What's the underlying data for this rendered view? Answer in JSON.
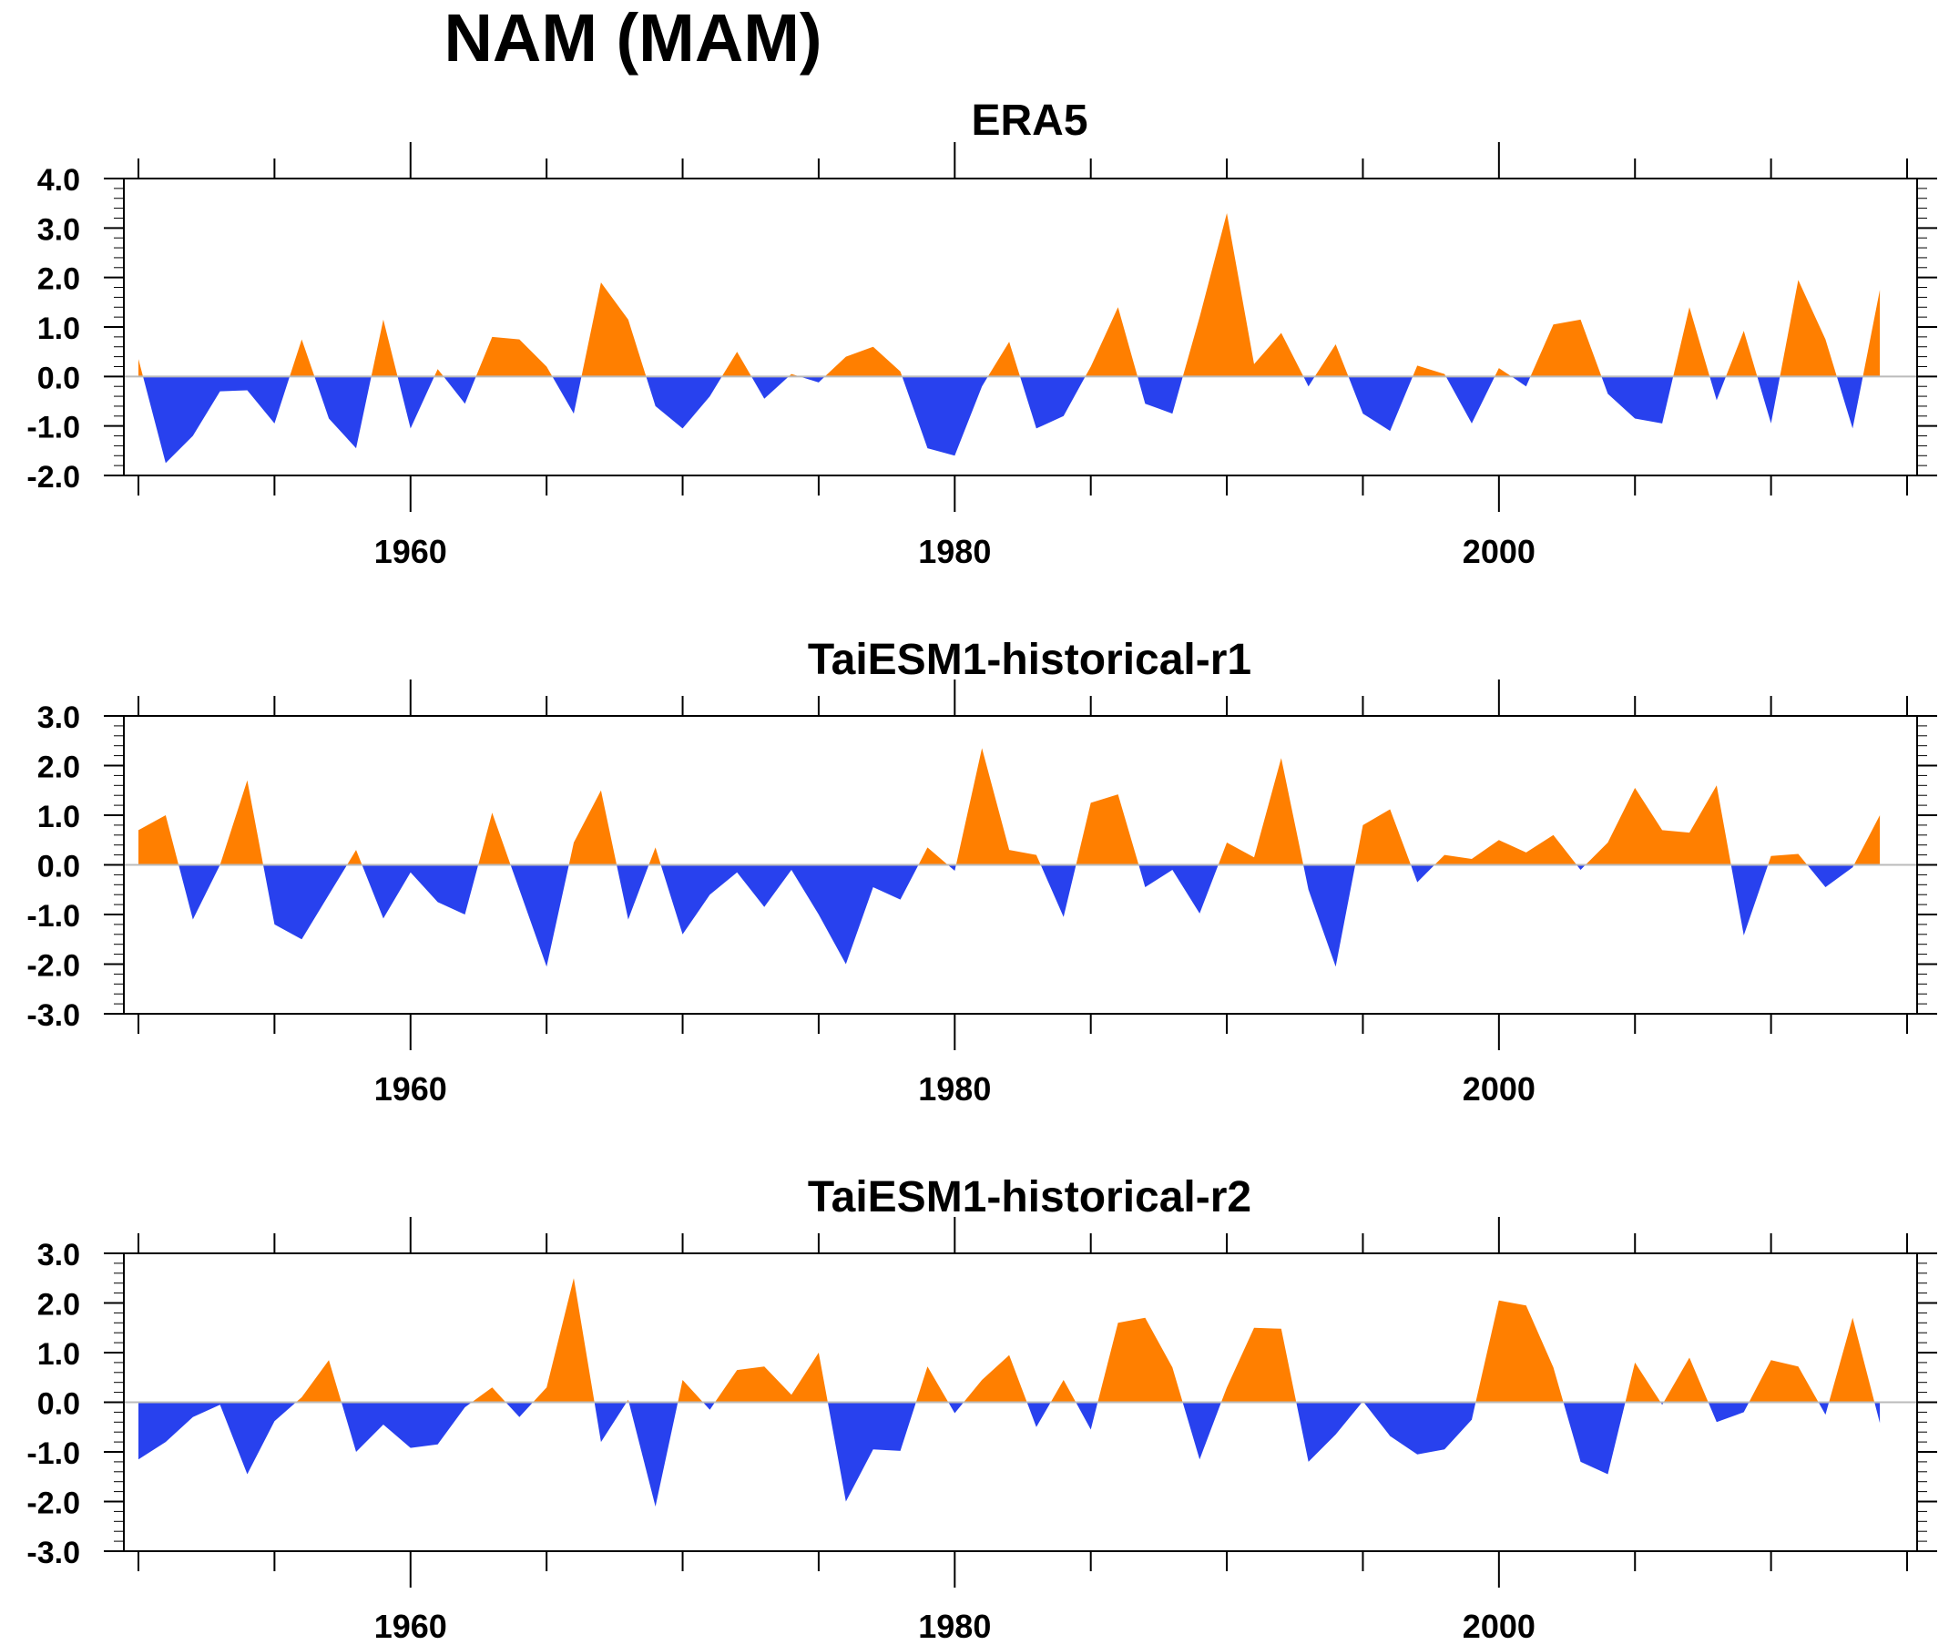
{
  "figure": {
    "title": "NAM (MAM)"
  },
  "colors": {
    "positive": "#ff7f00",
    "negative": "#2841ee",
    "axis": "#000000",
    "zero_line": "#bbbbbb"
  },
  "chart_data": [
    {
      "type": "area",
      "title": "ERA5",
      "xlabel": "",
      "ylabel": "",
      "xlim": [
        1950,
        2015
      ],
      "ylim": [
        -2.0,
        4.0
      ],
      "yticks": [
        "4.0",
        "3.0",
        "2.0",
        "1.0",
        "0.0",
        "-1.0",
        "-2.0"
      ],
      "xticks": [
        "1960",
        "1980",
        "2000"
      ],
      "grid": false,
      "x": [
        1950,
        1951,
        1952,
        1953,
        1954,
        1955,
        1956,
        1957,
        1958,
        1959,
        1960,
        1961,
        1962,
        1963,
        1964,
        1965,
        1966,
        1967,
        1968,
        1969,
        1970,
        1971,
        1972,
        1973,
        1974,
        1975,
        1976,
        1977,
        1978,
        1979,
        1980,
        1981,
        1982,
        1983,
        1984,
        1985,
        1986,
        1987,
        1988,
        1989,
        1990,
        1991,
        1992,
        1993,
        1994,
        1995,
        1996,
        1997,
        1998,
        1999,
        2000,
        2001,
        2002,
        2003,
        2004,
        2005,
        2006,
        2007,
        2008,
        2009,
        2010,
        2011,
        2012,
        2013,
        2014
      ],
      "values": [
        0.35,
        -1.75,
        -1.2,
        -0.3,
        -0.28,
        -0.95,
        0.75,
        -0.85,
        -1.45,
        1.15,
        -1.05,
        0.15,
        -0.55,
        0.8,
        0.75,
        0.2,
        -0.75,
        1.9,
        1.15,
        -0.6,
        -1.05,
        -0.4,
        0.5,
        -0.45,
        0.05,
        -0.12,
        0.4,
        0.6,
        0.1,
        -1.45,
        -1.6,
        -0.2,
        0.7,
        -1.05,
        -0.8,
        0.2,
        1.4,
        -0.55,
        -0.75,
        1.2,
        3.3,
        0.25,
        0.88,
        -0.2,
        0.65,
        -0.75,
        -1.1,
        0.22,
        0.05,
        -0.95,
        0.17,
        -0.2,
        1.05,
        1.15,
        -0.35,
        -0.85,
        -0.95,
        1.4,
        -0.48,
        0.92,
        -0.95,
        1.95,
        0.75,
        -1.05,
        1.75
      ]
    },
    {
      "type": "area",
      "title": "TaiESM1-historical-r1",
      "xlabel": "",
      "ylabel": "",
      "xlim": [
        1950,
        2015
      ],
      "ylim": [
        -3.0,
        3.0
      ],
      "yticks": [
        "3.0",
        "2.0",
        "1.0",
        "0.0",
        "-1.0",
        "-2.0",
        "-3.0"
      ],
      "xticks": [
        "1960",
        "1980",
        "2000"
      ],
      "grid": false,
      "x": [
        1950,
        1951,
        1952,
        1953,
        1954,
        1955,
        1956,
        1957,
        1958,
        1959,
        1960,
        1961,
        1962,
        1963,
        1964,
        1965,
        1966,
        1967,
        1968,
        1969,
        1970,
        1971,
        1972,
        1973,
        1974,
        1975,
        1976,
        1977,
        1978,
        1979,
        1980,
        1981,
        1982,
        1983,
        1984,
        1985,
        1986,
        1987,
        1988,
        1989,
        1990,
        1991,
        1992,
        1993,
        1994,
        1995,
        1996,
        1997,
        1998,
        1999,
        2000,
        2001,
        2002,
        2003,
        2004,
        2005,
        2006,
        2007,
        2008,
        2009,
        2010,
        2011,
        2012,
        2013,
        2014
      ],
      "values": [
        0.7,
        1.0,
        -1.1,
        0.0,
        1.7,
        -1.2,
        -1.5,
        -0.6,
        0.3,
        -1.08,
        -0.15,
        -0.75,
        -1.0,
        1.05,
        -0.5,
        -2.05,
        0.45,
        1.5,
        -1.1,
        0.35,
        -1.4,
        -0.6,
        -0.15,
        -0.85,
        -0.1,
        -1.0,
        -2.0,
        -0.45,
        -0.7,
        0.35,
        -0.12,
        2.35,
        0.3,
        0.2,
        -1.05,
        1.25,
        1.42,
        -0.45,
        -0.1,
        -0.98,
        0.45,
        0.15,
        2.15,
        -0.5,
        -2.05,
        0.8,
        1.12,
        -0.35,
        0.2,
        0.12,
        0.5,
        0.25,
        0.6,
        -0.1,
        0.45,
        1.55,
        0.7,
        0.65,
        1.6,
        -1.42,
        0.18,
        0.22,
        -0.45,
        -0.05,
        1.0
      ]
    },
    {
      "type": "area",
      "title": "TaiESM1-historical-r2",
      "xlabel": "",
      "ylabel": "",
      "xlim": [
        1950,
        2015
      ],
      "ylim": [
        -3.0,
        3.0
      ],
      "yticks": [
        "3.0",
        "2.0",
        "1.0",
        "0.0",
        "-1.0",
        "-2.0",
        "-3.0"
      ],
      "xticks": [
        "1960",
        "1980",
        "2000"
      ],
      "grid": false,
      "x": [
        1950,
        1951,
        1952,
        1953,
        1954,
        1955,
        1956,
        1957,
        1958,
        1959,
        1960,
        1961,
        1962,
        1963,
        1964,
        1965,
        1966,
        1967,
        1968,
        1969,
        1970,
        1971,
        1972,
        1973,
        1974,
        1975,
        1976,
        1977,
        1978,
        1979,
        1980,
        1981,
        1982,
        1983,
        1984,
        1985,
        1986,
        1987,
        1988,
        1989,
        1990,
        1991,
        1992,
        1993,
        1994,
        1995,
        1996,
        1997,
        1998,
        1999,
        2000,
        2001,
        2002,
        2003,
        2004,
        2005,
        2006,
        2007,
        2008,
        2009,
        2010,
        2011,
        2012,
        2013,
        2014
      ],
      "values": [
        -1.15,
        -0.8,
        -0.3,
        -0.05,
        -1.45,
        -0.38,
        0.1,
        0.85,
        -1.0,
        -0.45,
        -0.92,
        -0.85,
        -0.1,
        0.3,
        -0.3,
        0.3,
        2.5,
        -0.8,
        0.05,
        -2.1,
        0.45,
        -0.15,
        0.65,
        0.72,
        0.15,
        1.0,
        -2.0,
        -0.95,
        -0.98,
        0.72,
        -0.22,
        0.45,
        0.95,
        -0.5,
        0.45,
        -0.55,
        1.6,
        1.7,
        0.7,
        -1.15,
        0.3,
        1.5,
        1.48,
        -1.2,
        -0.65,
        0.02,
        -0.68,
        -1.05,
        -0.95,
        -0.35,
        2.05,
        1.95,
        0.7,
        -1.2,
        -1.45,
        0.8,
        -0.05,
        0.9,
        -0.4,
        -0.2,
        0.85,
        0.72,
        -0.25,
        1.7,
        -0.42
      ]
    }
  ]
}
